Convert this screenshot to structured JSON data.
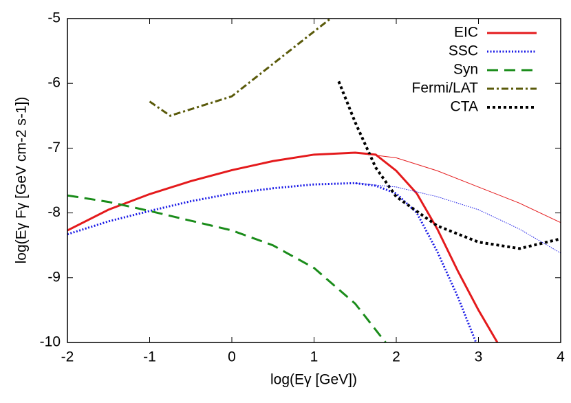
{
  "chart_data": {
    "type": "line",
    "x_label": "log(Eγ [GeV])",
    "y_label": "log(Eγ Fγ [GeV cm-2 s-1])",
    "xlim": [
      -2,
      4
    ],
    "xticks": [
      -2,
      -1,
      0,
      1,
      2,
      3,
      4
    ],
    "ylim": [
      -10,
      -5
    ],
    "yticks": [
      -10,
      -9,
      -8,
      -7,
      -6,
      -5
    ],
    "legend": "top-right",
    "series": [
      {
        "name": "EIC",
        "color": "#e41a1c",
        "style": "solid",
        "x": [
          -2,
          -1.5,
          -1,
          -0.5,
          0,
          0.5,
          1,
          1.5,
          1.75,
          2,
          2.25,
          2.5,
          2.75,
          3,
          3.23
        ],
        "values": [
          -8.27,
          -7.95,
          -7.71,
          -7.51,
          -7.34,
          -7.2,
          -7.1,
          -7.07,
          -7.1,
          -7.35,
          -7.7,
          -8.25,
          -8.9,
          -9.5,
          -10
        ]
      },
      {
        "name": "SSC",
        "color": "#1a1ae6",
        "style": "dotted",
        "x": [
          -2,
          -1.5,
          -1,
          -0.5,
          0,
          0.5,
          1,
          1.5,
          1.75,
          2,
          2.25,
          2.5,
          2.75,
          2.97
        ],
        "values": [
          -8.33,
          -8.13,
          -7.97,
          -7.82,
          -7.7,
          -7.62,
          -7.56,
          -7.54,
          -7.58,
          -7.7,
          -8.0,
          -8.6,
          -9.3,
          -10
        ]
      },
      {
        "name": "Syn",
        "color": "#1a8c1a",
        "style": "dashed",
        "x": [
          -2,
          -1.5,
          -1,
          -0.5,
          0,
          0.5,
          1,
          1.5,
          1.87
        ],
        "values": [
          -7.73,
          -7.83,
          -7.97,
          -8.12,
          -8.27,
          -8.5,
          -8.85,
          -9.4,
          -10
        ]
      },
      {
        "name": "Fermi/LAT",
        "color": "#5a5a0a",
        "style": "dashdot",
        "x": [
          -1,
          -0.75,
          0,
          1.2
        ],
        "values": [
          -6.28,
          -6.5,
          -6.2,
          -5.0
        ]
      },
      {
        "name": "CTA",
        "color": "#000000",
        "style": "dotted-black",
        "x": [
          1.3,
          1.5,
          1.75,
          2,
          2.5,
          3,
          3.5,
          4
        ],
        "values": [
          -5.97,
          -6.6,
          -7.3,
          -7.75,
          -8.2,
          -8.45,
          -8.55,
          -8.4
        ]
      },
      {
        "color": "#e41a1c",
        "style": "thin",
        "x": [
          1.5,
          2,
          2.5,
          3,
          3.5,
          4
        ],
        "values": [
          -7.07,
          -7.15,
          -7.35,
          -7.6,
          -7.85,
          -8.15
        ]
      },
      {
        "color": "#1a1ae6",
        "style": "thin-dotted",
        "x": [
          1.5,
          2,
          2.5,
          3,
          3.5,
          4
        ],
        "values": [
          -7.54,
          -7.6,
          -7.75,
          -7.95,
          -8.25,
          -8.62
        ]
      }
    ]
  }
}
